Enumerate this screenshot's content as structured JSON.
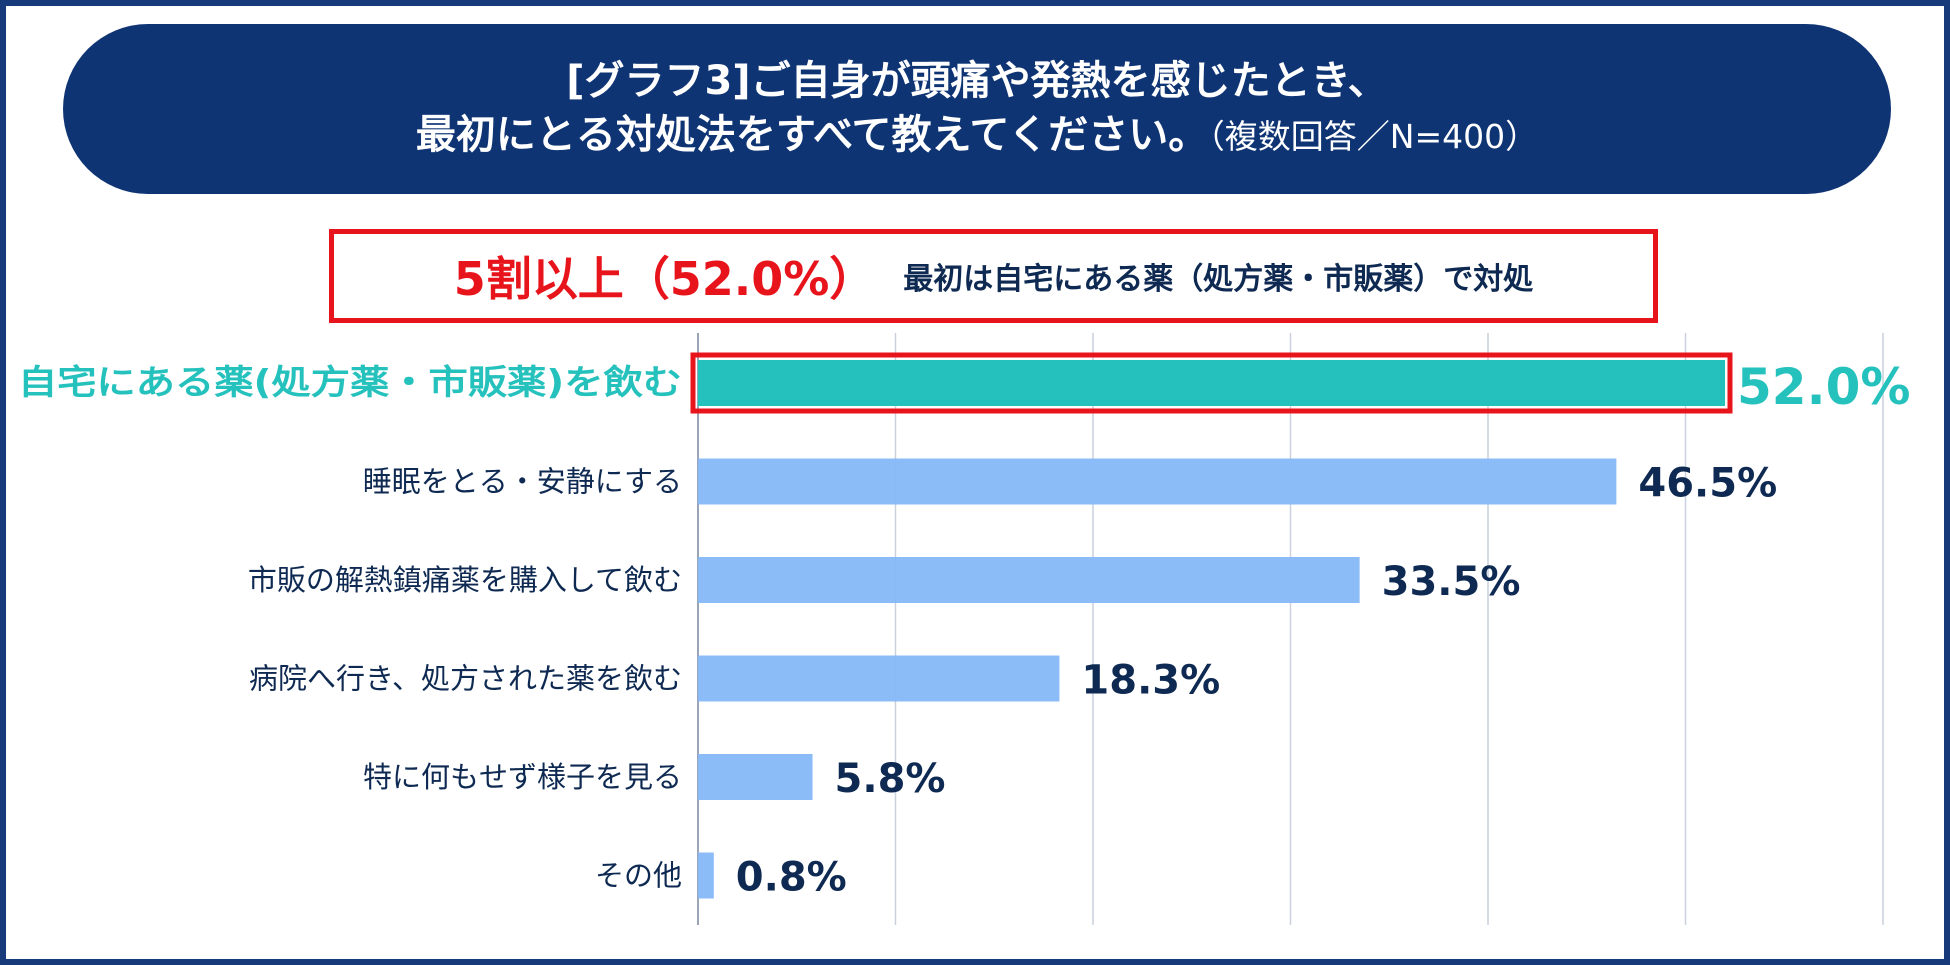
{
  "header": {
    "title_line1": "[グラフ3]ご自身が頭痛や発熱を感じたとき、",
    "title_line2": "最初にとる対処法をすべて教えてください。",
    "title_note": "（複数回答／N=400）"
  },
  "callout": {
    "big": "5割以上（52.0%）",
    "small": "最初は自宅にある薬（処方薬・市販薬）で対処"
  },
  "colors": {
    "banner": "#0f3474",
    "highlight_bar": "#25c1bc",
    "bar": "#86b8f8",
    "callout_red": "#e8141c",
    "text_dark": "#0f2a52"
  },
  "chart_data": {
    "type": "bar",
    "orientation": "horizontal",
    "categories": [
      "自宅にある薬(処方薬・市販薬)を飲む",
      "睡眠をとる・安静にする",
      "市販の解熱鎮痛薬を購入して飲む",
      "病院へ行き、処方された薬を飲む",
      "特に何もせず様子を見る",
      "その他"
    ],
    "values": [
      52.0,
      46.5,
      33.5,
      18.3,
      5.8,
      0.8
    ],
    "value_labels": [
      "52.0%",
      "46.5%",
      "33.5%",
      "18.3%",
      "5.8%",
      "0.8%"
    ],
    "highlight_index": 0,
    "xlim": [
      0,
      60
    ],
    "grid": true
  }
}
